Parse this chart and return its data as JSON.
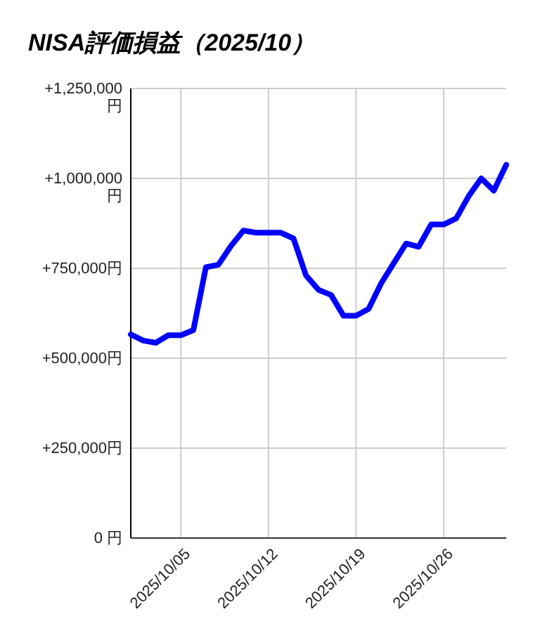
{
  "chart_data": {
    "type": "line",
    "title": "NISA評価損益（2025/10）",
    "x": [
      "2025-10-01",
      "2025-10-02",
      "2025-10-03",
      "2025-10-04",
      "2025-10-05",
      "2025-10-06",
      "2025-10-07",
      "2025-10-08",
      "2025-10-09",
      "2025-10-10",
      "2025-10-11",
      "2025-10-12",
      "2025-10-13",
      "2025-10-14",
      "2025-10-15",
      "2025-10-16",
      "2025-10-17",
      "2025-10-18",
      "2025-10-19",
      "2025-10-20",
      "2025-10-21",
      "2025-10-22",
      "2025-10-23",
      "2025-10-24",
      "2025-10-25",
      "2025-10-26",
      "2025-10-27",
      "2025-10-28",
      "2025-10-29",
      "2025-10-30",
      "2025-10-31"
    ],
    "series": [
      {
        "color": "#0000ff",
        "values": [
          566000,
          549000,
          543000,
          564000,
          564000,
          578000,
          753000,
          760000,
          812000,
          855000,
          849000,
          849000,
          849000,
          833000,
          730000,
          690000,
          676000,
          618000,
          618000,
          637000,
          708000,
          764000,
          819000,
          810000,
          872000,
          872000,
          889000,
          951000,
          1000000,
          966000,
          1038000
        ]
      }
    ],
    "xlim": [
      "2025-10-01",
      "2025-10-31"
    ],
    "xticks": [
      {
        "value": "2025-10-05",
        "label": "2025/10/05"
      },
      {
        "value": "2025-10-12",
        "label": "2025/10/12"
      },
      {
        "value": "2025-10-19",
        "label": "2025/10/19"
      },
      {
        "value": "2025-10-26",
        "label": "2025/10/26"
      }
    ],
    "ylim": [
      0,
      1250000
    ],
    "yticks": [
      {
        "value": 0,
        "label": "0 円"
      },
      {
        "value": 250000,
        "label": "+250,000円"
      },
      {
        "value": 500000,
        "label": "+500,000円"
      },
      {
        "value": 750000,
        "label": "+750,000円"
      },
      {
        "value": 1000000,
        "label": "+1,000,000円"
      },
      {
        "value": 1250000,
        "label": "+1,250,000円"
      }
    ],
    "grid": true,
    "marker": "none",
    "line_style": "solid"
  }
}
